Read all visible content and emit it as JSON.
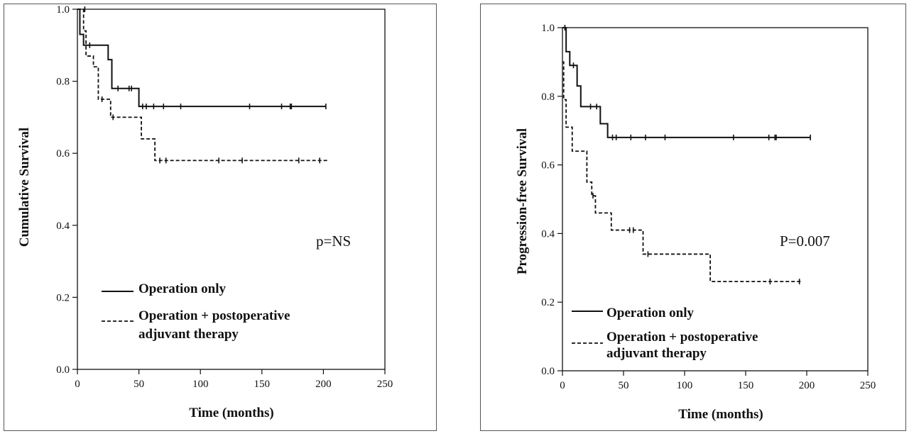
{
  "chart_data": [
    {
      "type": "line",
      "title": "",
      "xlabel": "Time (months)",
      "ylabel": "Cumulative Survival",
      "xlim": [
        0,
        250
      ],
      "ylim": [
        0,
        1.0
      ],
      "xticks": [
        "0",
        "50",
        "100",
        "150",
        "200",
        "250"
      ],
      "yticks": [
        "0.0",
        "0.2",
        "0.4",
        "0.6",
        "0.8",
        "1.0"
      ],
      "annotation": "p=NS",
      "legend": [
        "Operation only",
        "Operation + postoperative",
        "adjuvant therapy"
      ],
      "series": [
        {
          "name": "Operation only",
          "style": "solid",
          "steps": [
            [
              0,
              1.0
            ],
            [
              2,
              0.93
            ],
            [
              5,
              0.9
            ],
            [
              15,
              0.9
            ],
            [
              25,
              0.86
            ],
            [
              28,
              0.78
            ],
            [
              50,
              0.73
            ],
            [
              202,
              0.73
            ]
          ],
          "censors": [
            [
              10,
              0.9
            ],
            [
              33,
              0.78
            ],
            [
              42,
              0.78
            ],
            [
              44,
              0.78
            ],
            [
              53,
              0.73
            ],
            [
              56,
              0.73
            ],
            [
              62,
              0.73
            ],
            [
              70,
              0.73
            ],
            [
              84,
              0.73
            ],
            [
              140,
              0.73
            ],
            [
              166,
              0.73
            ],
            [
              173,
              0.73
            ],
            [
              174,
              0.73
            ],
            [
              202,
              0.73
            ]
          ]
        },
        {
          "name": "Operation + postoperative adjuvant therapy",
          "style": "dashed",
          "steps": [
            [
              0,
              1.0
            ],
            [
              5,
              0.94
            ],
            [
              7,
              0.87
            ],
            [
              13,
              0.84
            ],
            [
              17,
              0.75
            ],
            [
              27,
              0.7
            ],
            [
              52,
              0.64
            ],
            [
              63,
              0.58
            ],
            [
              204,
              0.58
            ]
          ],
          "censors": [
            [
              6,
              1.0
            ],
            [
              20,
              0.75
            ],
            [
              29,
              0.7
            ],
            [
              67,
              0.58
            ],
            [
              72,
              0.58
            ],
            [
              115,
              0.58
            ],
            [
              134,
              0.58
            ],
            [
              180,
              0.58
            ],
            [
              197,
              0.58
            ]
          ]
        }
      ]
    },
    {
      "type": "line",
      "title": "",
      "xlabel": "Time (months)",
      "ylabel": "Progression-free Survival",
      "xlim": [
        0,
        250
      ],
      "ylim": [
        0,
        1.0
      ],
      "xticks": [
        "0",
        "50",
        "100",
        "150",
        "200",
        "250"
      ],
      "yticks": [
        "0.0",
        "0.2",
        "0.4",
        "0.6",
        "0.8",
        "1.0"
      ],
      "annotation": "P=0.007",
      "legend": [
        "Operation only",
        "Operation + postoperative",
        "adjuvant therapy"
      ],
      "series": [
        {
          "name": "Operation only",
          "style": "solid",
          "steps": [
            [
              0,
              1.0
            ],
            [
              3,
              0.93
            ],
            [
              6,
              0.89
            ],
            [
              12,
              0.83
            ],
            [
              15,
              0.77
            ],
            [
              31,
              0.72
            ],
            [
              37,
              0.68
            ],
            [
              203,
              0.68
            ]
          ],
          "censors": [
            [
              2,
              1.0
            ],
            [
              9,
              0.89
            ],
            [
              23,
              0.77
            ],
            [
              28,
              0.77
            ],
            [
              41,
              0.68
            ],
            [
              44,
              0.68
            ],
            [
              56,
              0.68
            ],
            [
              68,
              0.68
            ],
            [
              84,
              0.68
            ],
            [
              140,
              0.68
            ],
            [
              169,
              0.68
            ],
            [
              174,
              0.68
            ],
            [
              175,
              0.68
            ],
            [
              203,
              0.68
            ]
          ]
        },
        {
          "name": "Operation + postoperative adjuvant therapy",
          "style": "dashed",
          "steps": [
            [
              0,
              0.9
            ],
            [
              1,
              0.79
            ],
            [
              3,
              0.71
            ],
            [
              8,
              0.64
            ],
            [
              20,
              0.55
            ],
            [
              24,
              0.51
            ],
            [
              27,
              0.46
            ],
            [
              40,
              0.41
            ],
            [
              66,
              0.34
            ],
            [
              121,
              0.26
            ],
            [
              196,
              0.26
            ]
          ],
          "censors": [
            [
              25,
              0.51
            ],
            [
              55,
              0.41
            ],
            [
              58,
              0.41
            ],
            [
              70,
              0.34
            ],
            [
              170,
              0.26
            ],
            [
              194,
              0.26
            ]
          ]
        }
      ]
    }
  ]
}
